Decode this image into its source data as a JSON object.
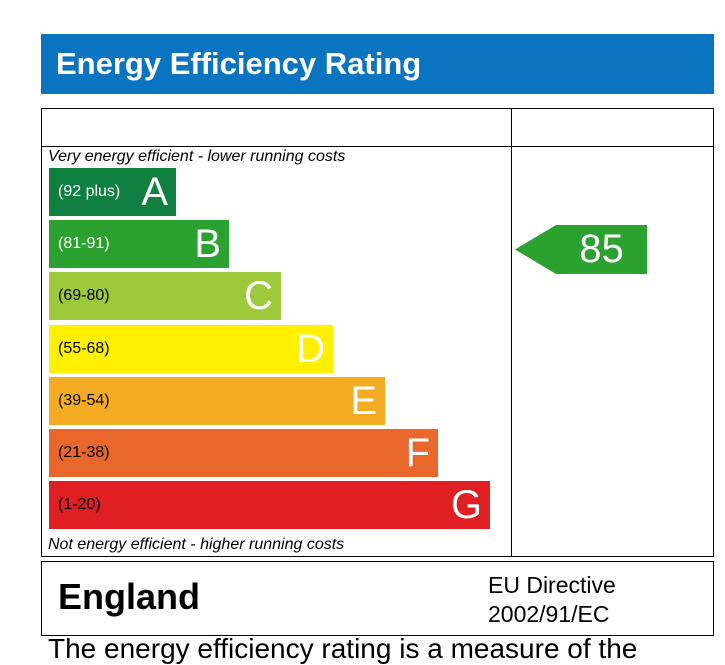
{
  "title": "Energy Efficiency Rating",
  "top_caption": "Very energy efficient - lower running costs",
  "bottom_caption": "Not energy efficient - higher running costs",
  "bands": [
    {
      "letter": "A",
      "range": "(92 plus)",
      "color": "#0f8040",
      "text_color": "#ffffff"
    },
    {
      "letter": "B",
      "range": "(81-91)",
      "color": "#2ba22f",
      "text_color": "#ffffff"
    },
    {
      "letter": "C",
      "range": "(69-80)",
      "color": "#9dc93a",
      "text_color": "#ffffff"
    },
    {
      "letter": "D",
      "range": "(55-68)",
      "color": "#fff000",
      "text_color": "#ffffff"
    },
    {
      "letter": "E",
      "range": "(39-54)",
      "color": "#f3ab21",
      "text_color": "#ffffff"
    },
    {
      "letter": "F",
      "range": "(21-38)",
      "color": "#e9672a",
      "text_color": "#ffffff"
    },
    {
      "letter": "G",
      "range": "(1-20)",
      "color": "#e01f23",
      "text_color": "#ffffff"
    }
  ],
  "rating": {
    "value": "85",
    "band": "B",
    "color": "#2ba22f"
  },
  "footer": {
    "region": "England",
    "directive_line1": "EU Directive",
    "directive_line2": "2002/91/EC",
    "partial_text": "The energy efficiency rating is a measure of the"
  }
}
